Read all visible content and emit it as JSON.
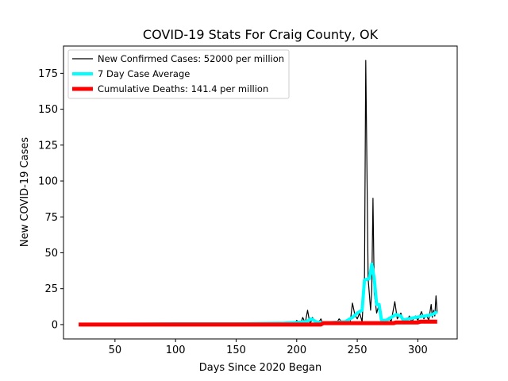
{
  "chart_data": {
    "type": "line",
    "title": "COVID-19 Stats For Craig County, OK",
    "xlabel": "Days Since 2020 Began",
    "ylabel": "New COVID-19 Cases",
    "xlim": [
      7.5,
      332.5
    ],
    "ylim": [
      -10,
      194
    ],
    "xticks": [
      50,
      100,
      150,
      200,
      250,
      300
    ],
    "yticks": [
      0,
      25,
      50,
      75,
      100,
      125,
      150,
      175
    ],
    "legend_position": "upper-left",
    "grid": false,
    "series": [
      {
        "name": "New Confirmed Cases: 52000 per million",
        "color": "#000000",
        "points": [
          [
            20,
            0
          ],
          [
            60,
            0
          ],
          [
            100,
            0
          ],
          [
            140,
            0
          ],
          [
            175,
            0
          ],
          [
            185,
            1
          ],
          [
            190,
            0
          ],
          [
            195,
            2
          ],
          [
            198,
            0
          ],
          [
            200,
            3
          ],
          [
            203,
            0
          ],
          [
            205,
            5
          ],
          [
            207,
            1
          ],
          [
            209,
            10
          ],
          [
            211,
            0
          ],
          [
            213,
            5
          ],
          [
            215,
            2
          ],
          [
            217,
            0
          ],
          [
            220,
            4
          ],
          [
            222,
            0
          ],
          [
            228,
            1
          ],
          [
            232,
            0
          ],
          [
            235,
            4
          ],
          [
            238,
            1
          ],
          [
            242,
            2
          ],
          [
            244,
            0
          ],
          [
            246,
            15
          ],
          [
            248,
            7
          ],
          [
            250,
            4
          ],
          [
            252,
            8
          ],
          [
            254,
            2
          ],
          [
            256,
            32
          ],
          [
            257,
            184
          ],
          [
            259,
            32
          ],
          [
            261,
            10
          ],
          [
            262,
            25
          ],
          [
            263,
            88
          ],
          [
            264,
            22
          ],
          [
            266,
            8
          ],
          [
            268,
            14
          ],
          [
            270,
            4
          ],
          [
            273,
            2
          ],
          [
            276,
            5
          ],
          [
            278,
            2
          ],
          [
            281,
            16
          ],
          [
            283,
            4
          ],
          [
            286,
            8
          ],
          [
            288,
            3
          ],
          [
            290,
            1
          ],
          [
            293,
            6
          ],
          [
            295,
            2
          ],
          [
            298,
            6
          ],
          [
            300,
            3
          ],
          [
            303,
            9
          ],
          [
            305,
            4
          ],
          [
            307,
            7
          ],
          [
            309,
            3
          ],
          [
            311,
            14
          ],
          [
            312,
            5
          ],
          [
            313,
            10
          ],
          [
            314,
            6
          ],
          [
            315,
            20
          ],
          [
            316,
            8
          ]
        ]
      },
      {
        "name": "7 Day Case Average",
        "color": "#00ffff",
        "points": [
          [
            20,
            0
          ],
          [
            100,
            0.5
          ],
          [
            150,
            0.5
          ],
          [
            190,
            1
          ],
          [
            200,
            1.5
          ],
          [
            208,
            2
          ],
          [
            212,
            4
          ],
          [
            216,
            2
          ],
          [
            222,
            1
          ],
          [
            240,
            2
          ],
          [
            246,
            5
          ],
          [
            250,
            8
          ],
          [
            254,
            10
          ],
          [
            256,
            31
          ],
          [
            260,
            32
          ],
          [
            262,
            42
          ],
          [
            264,
            32
          ],
          [
            266,
            14
          ],
          [
            268,
            14
          ],
          [
            270,
            3
          ],
          [
            274,
            3
          ],
          [
            278,
            5
          ],
          [
            282,
            7
          ],
          [
            286,
            6
          ],
          [
            288,
            3
          ],
          [
            292,
            4
          ],
          [
            298,
            5
          ],
          [
            306,
            6
          ],
          [
            312,
            7
          ],
          [
            316,
            9
          ]
        ]
      },
      {
        "name": "Cumulative Deaths: 141.4 per million",
        "color": "#ff0000",
        "points": [
          [
            20,
            0
          ],
          [
            220,
            0
          ],
          [
            222,
            1
          ],
          [
            280,
            1
          ],
          [
            282,
            1.5
          ],
          [
            300,
            1.5
          ],
          [
            302,
            2
          ],
          [
            316,
            2
          ]
        ]
      }
    ]
  }
}
